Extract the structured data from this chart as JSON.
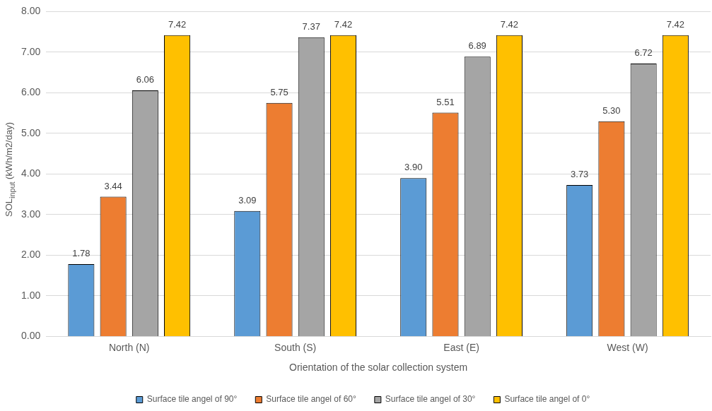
{
  "chart_data": {
    "type": "bar",
    "xlabel": "Orientation of the solar collection system",
    "ylabel": "SOL$_{input}$ (kWh/m2/day)",
    "categories": [
      "North (N)",
      "South (S)",
      "East (E)",
      "West (W)"
    ],
    "series": [
      {
        "name": "Surface tile angel of 90°",
        "color": "#5b9bd5",
        "values": [
          1.78,
          3.09,
          3.9,
          3.73
        ],
        "value_labels": [
          "1.78",
          "3.09",
          "3.90",
          "3.73"
        ]
      },
      {
        "name": "Surface tile angel of 60°",
        "color": "#ed7d31",
        "values": [
          3.44,
          5.75,
          5.51,
          5.3
        ],
        "value_labels": [
          "3.44",
          "5.75",
          "5.51",
          "5.30"
        ]
      },
      {
        "name": "Surface tile angel of 30°",
        "color": "#a5a5a5",
        "values": [
          6.06,
          7.37,
          6.89,
          6.72
        ],
        "value_labels": [
          "6.06",
          "7.37",
          "6.89",
          "6.72"
        ]
      },
      {
        "name": "Surface tile angel of 0°",
        "color": "#ffc000",
        "values": [
          7.42,
          7.42,
          7.42,
          7.42
        ],
        "value_labels": [
          "7.42",
          "7.42",
          "7.42",
          "7.42"
        ]
      }
    ],
    "ylim": [
      0,
      8
    ],
    "yticks": [
      {
        "value": 0,
        "label": "0.00"
      },
      {
        "value": 1,
        "label": "1.00"
      },
      {
        "value": 2,
        "label": "2.00"
      },
      {
        "value": 3,
        "label": "3.00"
      },
      {
        "value": 4,
        "label": "4.00"
      },
      {
        "value": 5,
        "label": "5.00"
      },
      {
        "value": 6,
        "label": "6.00"
      },
      {
        "value": 7,
        "label": "7.00"
      },
      {
        "value": 8,
        "label": "8.00"
      }
    ],
    "grid": "y",
    "legend": "bottom"
  }
}
